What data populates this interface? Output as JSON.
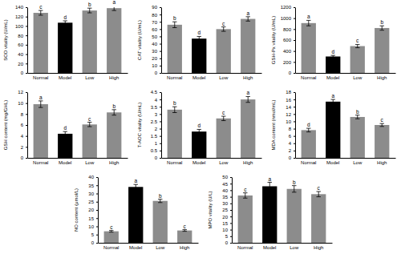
{
  "chart_data": [
    {
      "type": "bar",
      "y_label": "SOD vitality (U/mL)",
      "categories": [
        "Normal",
        "Model",
        "Low",
        "High"
      ],
      "values": [
        128,
        107,
        133,
        138
      ],
      "errors": [
        5,
        4,
        5,
        5
      ],
      "annotations": [
        "c",
        "d",
        "b",
        "a"
      ],
      "colors": [
        "#8c8c8c",
        "#000000",
        "#8c8c8c",
        "#8c8c8c"
      ],
      "ylim": [
        0,
        140
      ],
      "yticks": [
        0,
        20,
        40,
        60,
        80,
        100,
        120,
        140
      ]
    },
    {
      "type": "bar",
      "y_label": "CAT vitality (U/mL)",
      "categories": [
        "Normal",
        "Model",
        "Low",
        "High"
      ],
      "values": [
        66,
        47,
        60,
        74
      ],
      "errors": [
        4,
        3,
        3,
        3
      ],
      "annotations": [
        "b",
        "d",
        "c",
        "a"
      ],
      "colors": [
        "#8c8c8c",
        "#000000",
        "#8c8c8c",
        "#8c8c8c"
      ],
      "ylim": [
        0,
        90
      ],
      "yticks": [
        0,
        10,
        20,
        30,
        40,
        50,
        60,
        70,
        80,
        90
      ]
    },
    {
      "type": "bar",
      "y_label": "GSH-Px vitality (U/mL)",
      "categories": [
        "Normal",
        "Model",
        "Low",
        "High"
      ],
      "values": [
        910,
        300,
        490,
        820
      ],
      "errors": [
        50,
        20,
        30,
        40
      ],
      "annotations": [
        "a",
        "d",
        "c",
        "b"
      ],
      "colors": [
        "#8c8c8c",
        "#000000",
        "#8c8c8c",
        "#8c8c8c"
      ],
      "ylim": [
        0,
        1200
      ],
      "yticks": [
        0,
        200,
        400,
        600,
        800,
        1000,
        1200
      ]
    },
    {
      "type": "bar",
      "y_label": "GSH content (mg/GHL)",
      "categories": [
        "Normal",
        "Model",
        "Low",
        "High"
      ],
      "values": [
        9.8,
        4.4,
        6.1,
        8.3
      ],
      "errors": [
        0.6,
        0.4,
        0.4,
        0.5
      ],
      "annotations": [
        "a",
        "d",
        "c",
        "b"
      ],
      "colors": [
        "#8c8c8c",
        "#000000",
        "#8c8c8c",
        "#8c8c8c"
      ],
      "ylim": [
        0,
        12
      ],
      "yticks": [
        0,
        2,
        4,
        6,
        8,
        10,
        12
      ]
    },
    {
      "type": "bar",
      "y_label": "T-AOC vitality (U/mL)",
      "categories": [
        "Normal",
        "Model",
        "Low",
        "High"
      ],
      "values": [
        3.3,
        1.8,
        2.7,
        4.0
      ],
      "errors": [
        0.2,
        0.15,
        0.15,
        0.2
      ],
      "annotations": [
        "b",
        "d",
        "c",
        "a"
      ],
      "colors": [
        "#8c8c8c",
        "#000000",
        "#8c8c8c",
        "#8c8c8c"
      ],
      "ylim": [
        0,
        4.5
      ],
      "yticks": [
        0,
        0.5,
        1,
        1.5,
        2,
        2.5,
        3,
        3.5,
        4,
        4.5
      ]
    },
    {
      "type": "bar",
      "y_label": "MDA content (nmol/mL)",
      "categories": [
        "Normal",
        "Model",
        "Low",
        "High"
      ],
      "values": [
        7.6,
        15.4,
        11.2,
        9.0
      ],
      "errors": [
        0.5,
        0.6,
        0.5,
        0.4
      ],
      "annotations": [
        "d",
        "a",
        "b",
        "c"
      ],
      "colors": [
        "#8c8c8c",
        "#000000",
        "#8c8c8c",
        "#8c8c8c"
      ],
      "ylim": [
        0,
        18
      ],
      "yticks": [
        0,
        2,
        4,
        6,
        8,
        10,
        12,
        14,
        16,
        18
      ]
    },
    {
      "type": "bar",
      "y_label": "NO content (μmol/L)",
      "categories": [
        "Normal",
        "Model",
        "Low",
        "High"
      ],
      "values": [
        7,
        34,
        25.5,
        7.5
      ],
      "errors": [
        0.5,
        1.5,
        1,
        0.5
      ],
      "annotations": [
        "c",
        "a",
        "b",
        "c"
      ],
      "colors": [
        "#8c8c8c",
        "#000000",
        "#8c8c8c",
        "#8c8c8c"
      ],
      "ylim": [
        0,
        40
      ],
      "yticks": [
        0,
        5,
        10,
        15,
        20,
        25,
        30,
        35,
        40
      ]
    },
    {
      "type": "bar",
      "y_label": "MPO vitality (U/L)",
      "categories": [
        "Normal",
        "Model",
        "Low",
        "High"
      ],
      "values": [
        36,
        43,
        41,
        37
      ],
      "errors": [
        2,
        3,
        2.5,
        2
      ],
      "annotations": [
        "c",
        "a",
        "b",
        "c"
      ],
      "colors": [
        "#8c8c8c",
        "#000000",
        "#8c8c8c",
        "#8c8c8c"
      ],
      "ylim": [
        0,
        50
      ],
      "yticks": [
        0,
        5,
        10,
        15,
        20,
        25,
        30,
        35,
        40,
        45,
        50
      ]
    }
  ]
}
